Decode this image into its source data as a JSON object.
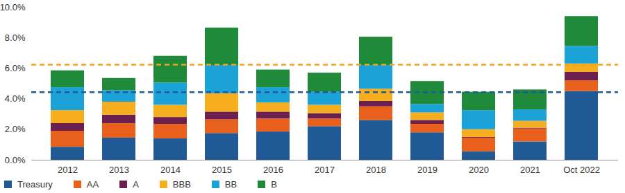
{
  "chart_data": {
    "type": "bar",
    "stacked": true,
    "grid": false,
    "legend": "bottom",
    "categories": [
      "2012",
      "2013",
      "2014",
      "2015",
      "2016",
      "2017",
      "2018",
      "2019",
      "2020",
      "2021",
      "Oct 2022"
    ],
    "series": [
      {
        "name": "Treasury",
        "color": "#1f5a96",
        "values": [
          0.85,
          1.45,
          1.4,
          1.75,
          1.85,
          2.2,
          2.6,
          1.8,
          0.55,
          1.2,
          4.5
        ]
      },
      {
        "name": "AA",
        "color": "#e8601c",
        "values": [
          1.05,
          0.95,
          0.95,
          0.9,
          0.85,
          0.5,
          0.9,
          0.55,
          0.9,
          0.85,
          0.7
        ]
      },
      {
        "name": "A",
        "color": "#6b1f4f",
        "values": [
          0.5,
          0.55,
          0.45,
          0.5,
          0.45,
          0.35,
          0.35,
          0.25,
          0.05,
          0.05,
          0.55
        ]
      },
      {
        "name": "BBB",
        "color": "#f6ad1e",
        "values": [
          0.85,
          0.85,
          0.8,
          1.2,
          0.6,
          0.55,
          0.8,
          0.5,
          0.5,
          0.45,
          0.55
        ]
      },
      {
        "name": "BB",
        "color": "#1ba3d8",
        "values": [
          1.5,
          0.75,
          1.45,
          1.85,
          1.0,
          0.85,
          1.55,
          0.55,
          1.25,
          0.75,
          1.15
        ]
      },
      {
        "name": "B",
        "color": "#1e8a3a",
        "values": [
          1.1,
          0.8,
          1.75,
          2.45,
          1.15,
          1.25,
          1.85,
          1.5,
          1.2,
          1.3,
          1.95
        ]
      }
    ],
    "reference_lines": [
      {
        "value": 6.25,
        "color": "#f5a31e",
        "line_style": "dashed"
      },
      {
        "value": 4.45,
        "color": "#1f5a96",
        "line_style": "dashed"
      }
    ],
    "ylim": [
      0,
      10
    ],
    "yticks": [
      {
        "value": 0,
        "label": "0.0%"
      },
      {
        "value": 2,
        "label": "2.0%"
      },
      {
        "value": 4,
        "label": "4.0%"
      },
      {
        "value": 6,
        "label": "6.0%"
      },
      {
        "value": 8,
        "label": "8.0%"
      },
      {
        "value": 10,
        "label": "10.0%"
      }
    ]
  }
}
